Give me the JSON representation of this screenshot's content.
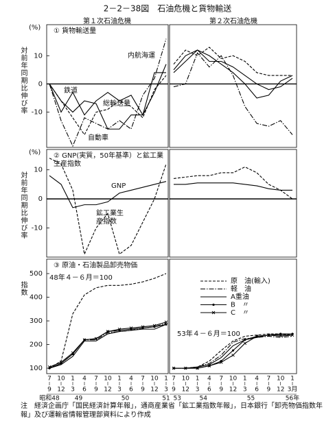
{
  "title": "2－2－38図　石油危機と貨物輸送",
  "period_headers": [
    "第１次石油危機",
    "第２次石油危機"
  ],
  "x_axis": {
    "first": {
      "start": [
        "7",
        "10",
        "1",
        "4",
        "7",
        "10",
        "1",
        "4",
        "7",
        "10",
        "1"
      ],
      "end": [
        "9",
        "12",
        "3",
        "6",
        "9",
        "12",
        "3",
        "6",
        "9",
        "12",
        "3"
      ],
      "years": [
        "昭和48",
        "49",
        "50",
        "51"
      ]
    },
    "second": {
      "start": [
        "7",
        "10",
        "1",
        "4",
        "7",
        "10",
        "1",
        "4",
        "7",
        "10",
        "1"
      ],
      "end": [
        "9",
        "12",
        "3",
        "6",
        "9",
        "12",
        "3",
        "6",
        "9",
        "12",
        "3月"
      ],
      "years": [
        "53",
        "54",
        "55",
        "56年"
      ]
    }
  },
  "chart_data": [
    {
      "type": "line",
      "title": "① 貨物輸送量",
      "unit": "(%)",
      "ylabel": "対前年同期比伸び率",
      "ylim": [
        -22.5,
        21
      ],
      "yticks": [
        10,
        0,
        -10
      ],
      "legend": false,
      "series": [
        {
          "name": "内航海運",
          "color": "#000000",
          "style": "dashdot",
          "values": [
            0,
            -13,
            -22,
            -12,
            -14,
            -16,
            -13,
            -16,
            -4,
            2,
            16
          ],
          "values_2": [
            -1,
            0,
            11,
            6,
            10,
            3,
            -8,
            -14,
            -15,
            -13,
            -18
          ]
        },
        {
          "name": "鉄道",
          "color": "#000000",
          "style": "solid",
          "values": [
            0,
            -10,
            -3,
            -11,
            -6,
            -3,
            -6,
            -4,
            -11,
            -3,
            7
          ],
          "values_2": [
            5,
            10,
            12,
            10,
            7,
            4,
            0,
            -5,
            -4,
            1,
            3
          ]
        },
        {
          "name": "総輸送量",
          "color": "#000000",
          "style": "dashed",
          "values": [
            0,
            -6,
            -12,
            -18,
            -10,
            -9,
            -6,
            -8,
            -12,
            -2,
            3
          ],
          "values_2": [
            7,
            12,
            10,
            13,
            9,
            10,
            8,
            4,
            3,
            3,
            3
          ]
        },
        {
          "name": "自動車",
          "color": "#000000",
          "style": "solid",
          "values": [
            0,
            -6,
            -10,
            -6,
            -7,
            -16,
            -16,
            -11,
            -11,
            4,
            4
          ],
          "values_2": [
            4,
            8,
            12,
            8,
            8,
            6,
            3,
            0,
            -2,
            -1,
            2
          ]
        }
      ]
    },
    {
      "type": "line",
      "title": "② GNP(実質，50年基準）と鉱工業生産指数",
      "unit": "(%)",
      "ylabel": "対前年同期比伸び率",
      "ylim": [
        -20,
        17
      ],
      "yticks": [
        10,
        0,
        -10
      ],
      "legend": false,
      "series": [
        {
          "name": "GNP",
          "color": "#000000",
          "style": "solid",
          "values": [
            8,
            5,
            -3,
            -2,
            -2,
            -1,
            2,
            3,
            4,
            5,
            6
          ],
          "values_2": [
            5,
            5,
            5.5,
            5.5,
            5.5,
            5.5,
            5,
            4.5,
            3.5,
            3,
            3
          ]
        },
        {
          "name": "鉱工業生産指数",
          "color": "#000000",
          "style": "dashed",
          "values": [
            14,
            12,
            3,
            -19,
            -10,
            -5,
            -19,
            -16,
            -8,
            0,
            12
          ],
          "values_2": [
            7,
            7.5,
            8,
            8,
            9,
            9,
            11,
            9,
            5,
            3,
            0
          ]
        }
      ]
    },
    {
      "type": "line",
      "title": "③ 原油・石油製品卸売物価",
      "ylabel": "指数",
      "ylim": [
        77,
        561
      ],
      "yticks": [
        100,
        200,
        300,
        400,
        500
      ],
      "legend": "right",
      "base_labels": [
        "48年４－６月＝100",
        "53年４－６月＝100"
      ],
      "series": [
        {
          "name": "原　油(輸入)",
          "color": "#000000",
          "style": "dashed",
          "values": [
            100,
            130,
            330,
            410,
            440,
            450,
            450,
            455,
            465,
            480,
            500
          ],
          "values_2": [
            100,
            100,
            105,
            130,
            175,
            215,
            235,
            240,
            245,
            245,
            240
          ]
        },
        {
          "name": "軽　油",
          "color": "#000000",
          "style": "dashdot",
          "values": [
            100,
            120,
            160,
            220,
            220,
            250,
            255,
            260,
            270,
            275,
            290
          ],
          "values_2": [
            100,
            100,
            105,
            120,
            155,
            210,
            225,
            230,
            235,
            230,
            235
          ]
        },
        {
          "name": "A重油",
          "color": "#000000",
          "style": "solid",
          "values": [
            100,
            115,
            150,
            215,
            215,
            245,
            255,
            260,
            265,
            265,
            285
          ],
          "values_2": [
            100,
            100,
            105,
            115,
            145,
            195,
            220,
            230,
            240,
            235,
            240
          ]
        },
        {
          "name": "B　〃",
          "color": "#000000",
          "style": "solid",
          "marker": "dot",
          "values": [
            100,
            120,
            160,
            220,
            225,
            255,
            260,
            265,
            270,
            275,
            285
          ],
          "values_2": [
            100,
            100,
            100,
            110,
            130,
            175,
            220,
            235,
            240,
            245,
            245
          ]
        },
        {
          "name": "C　〃",
          "color": "#000000",
          "style": "solid",
          "marker": "cross",
          "values": [
            105,
            125,
            165,
            220,
            225,
            255,
            265,
            270,
            275,
            280,
            295
          ],
          "values_2": [
            100,
            100,
            100,
            110,
            125,
            155,
            205,
            235,
            240,
            240,
            240
          ]
        }
      ]
    }
  ],
  "note": "注　経済企画庁「国民経済計算年報」，通商産業省「鉱工業指数年報」，日本銀行「卸売物価指数年報」及び運輸省情報管理部資料により作成"
}
